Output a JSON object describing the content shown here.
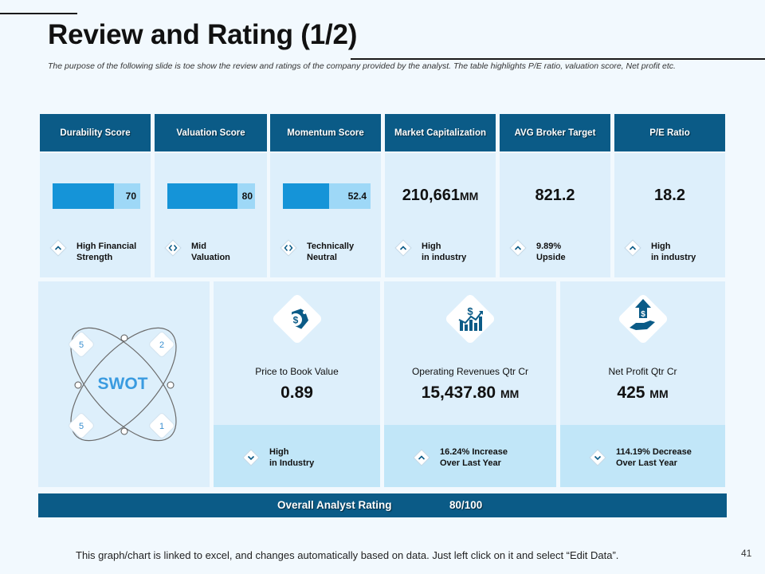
{
  "title": "Review and Rating (1/2)",
  "subtitle": "The purpose of the following slide is toe show the review and ratings of the company provided by the analyst. The table highlights P/E ratio, valuation score, Net profit etc.",
  "colors": {
    "header": "#0b5b87",
    "bar_fill": "#1594d8",
    "bar_track": "#9ed8f7",
    "card_bg": "#ddeffb"
  },
  "metrics": [
    {
      "header": "Durability  Score",
      "value": 70,
      "value_text": "70",
      "bar_fraction": 0.7,
      "indicator_icon": "chevron-up-icon",
      "indicator_line1": "High Financial",
      "indicator_line2": "Strength"
    },
    {
      "header": "Valuation  Score",
      "value": 80,
      "value_text": "80",
      "bar_fraction": 0.8,
      "indicator_icon": "chevrons-horizontal-icon",
      "indicator_line1": "Mid",
      "indicator_line2": "Valuation"
    },
    {
      "header": "Momentum  Score",
      "value": 52.4,
      "value_text": "52.4",
      "bar_fraction": 0.524,
      "indicator_icon": "chevrons-horizontal-icon",
      "indicator_line1": "Technically",
      "indicator_line2": "Neutral"
    },
    {
      "header": "Market Capitalization",
      "value_text": "210,661",
      "unit": "MM",
      "indicator_icon": "chevron-up-icon",
      "indicator_line1": "High",
      "indicator_line2": "in industry"
    },
    {
      "header": "AVG  Broker  Target",
      "value_text": "821.2",
      "unit": "",
      "indicator_icon": "chevron-up-icon",
      "indicator_line1": "9.89%",
      "indicator_line2": "Upside"
    },
    {
      "header": "P/E  Ratio",
      "value_text": "18.2",
      "unit": "",
      "indicator_icon": "chevron-up-icon",
      "indicator_line1": "High",
      "indicator_line2": "in industry"
    }
  ],
  "swot": {
    "label": "SWOT",
    "numbers": [
      "5",
      "2",
      "5",
      "1"
    ]
  },
  "financials": [
    {
      "icon": "dollar-tag-icon",
      "label": "Price to Book Value",
      "value": "0.89",
      "unit": "",
      "indicator_icon": "chevron-down-icon",
      "indicator_line1": "High",
      "indicator_line2": "in Industry"
    },
    {
      "icon": "revenue-growth-icon",
      "label": "Operating Revenues Qtr Cr",
      "value": "15,437.80",
      "unit": "MM",
      "indicator_icon": "chevron-up-icon",
      "indicator_line1": "16.24% Increase",
      "indicator_line2": "Over Last Year"
    },
    {
      "icon": "dollar-hand-icon",
      "label": "Net Profit Qtr Cr",
      "value": "425",
      "unit": "MM",
      "indicator_icon": "chevron-down-icon",
      "indicator_line1": "114.19% Decrease",
      "indicator_line2": "Over Last Year"
    }
  ],
  "overall": {
    "label": "Overall Analyst  Rating",
    "value": "80/100"
  },
  "footer": "This graph/chart is linked to excel, and changes automatically based on data. Just left click on it and select “Edit Data”.",
  "page_number": "41"
}
